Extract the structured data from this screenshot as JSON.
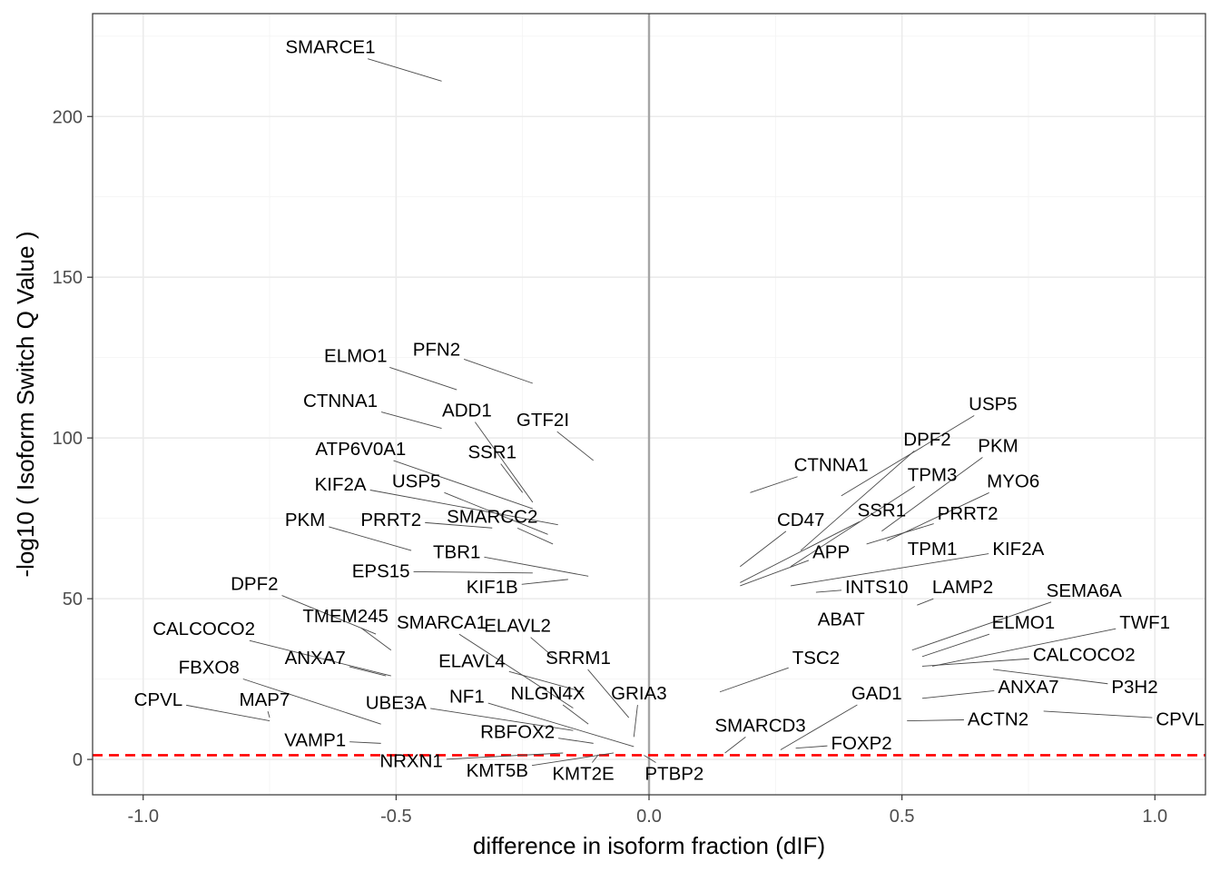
{
  "chart_data": {
    "type": "scatter",
    "title": "",
    "xlabel": "difference in isoform fraction (dIF)",
    "ylabel": "-log10 ( Isoform Switch Q Value )",
    "xlim": [
      -1.1,
      1.1
    ],
    "ylim": [
      -11,
      232
    ],
    "x_ticks": [
      -1.0,
      -0.5,
      0.0,
      0.5,
      1.0
    ],
    "x_tick_labels": [
      "-1.0",
      "-0.5",
      "0.0",
      "0.5",
      "1.0"
    ],
    "y_ticks": [
      0,
      50,
      100,
      150,
      200
    ],
    "y_tick_labels": [
      "0",
      "50",
      "100",
      "150",
      "200"
    ],
    "grid": true,
    "legend": "none",
    "reference_lines": [
      {
        "orientation": "vertical",
        "value": 0,
        "color": "#a6a6a6",
        "style": "solid"
      },
      {
        "orientation": "horizontal",
        "value": 1.3,
        "color": "#ff0000",
        "style": "dashed"
      }
    ],
    "points": [
      {
        "label": "SMARCE1",
        "x": -0.41,
        "y": 211,
        "label_x": -0.63,
        "label_y": 221.5
      },
      {
        "label": "PFN2",
        "x": -0.23,
        "y": 117,
        "label_x": -0.42,
        "label_y": 127.5
      },
      {
        "label": "ELMO1",
        "x": -0.38,
        "y": 115,
        "label_x": -0.58,
        "label_y": 125.5
      },
      {
        "label": "CTNNA1",
        "x": -0.41,
        "y": 103,
        "label_x": -0.61,
        "label_y": 111.5
      },
      {
        "label": "ADD1",
        "x": -0.23,
        "y": 80,
        "label_x": -0.36,
        "label_y": 108.5
      },
      {
        "label": "GTF2I",
        "x": -0.11,
        "y": 93,
        "label_x": -0.21,
        "label_y": 105.5
      },
      {
        "label": "ATP6V0A1",
        "x": -0.23,
        "y": 78,
        "label_x": -0.57,
        "label_y": 96.5
      },
      {
        "label": "SSR1",
        "x": -0.25,
        "y": 83,
        "label_x": -0.31,
        "label_y": 95.5
      },
      {
        "label": "KIF2A",
        "x": -0.18,
        "y": 73,
        "label_x": -0.61,
        "label_y": 85.5
      },
      {
        "label": "USP5",
        "x": -0.2,
        "y": 70,
        "label_x": -0.46,
        "label_y": 86.5
      },
      {
        "label": "PKM",
        "x": -0.47,
        "y": 65,
        "label_x": -0.68,
        "label_y": 74.5
      },
      {
        "label": "PRRT2",
        "x": -0.31,
        "y": 72,
        "label_x": -0.51,
        "label_y": 74.5
      },
      {
        "label": "SMARCC2",
        "x": -0.19,
        "y": 67,
        "label_x": -0.31,
        "label_y": 75.5
      },
      {
        "label": "TBR1",
        "x": -0.12,
        "y": 57,
        "label_x": -0.38,
        "label_y": 64.5
      },
      {
        "label": "EPS15",
        "x": -0.23,
        "y": 58,
        "label_x": -0.53,
        "label_y": 58.5
      },
      {
        "label": "KIF1B",
        "x": -0.16,
        "y": 56,
        "label_x": -0.31,
        "label_y": 53.5
      },
      {
        "label": "DPF2",
        "x": -0.54,
        "y": 39,
        "label_x": -0.78,
        "label_y": 54.5
      },
      {
        "label": "TMEM245",
        "x": -0.51,
        "y": 34,
        "label_x": -0.6,
        "label_y": 44.5
      },
      {
        "label": "CALCOCO2",
        "x": -0.51,
        "y": 26,
        "label_x": -0.88,
        "label_y": 40.5
      },
      {
        "label": "SMARCA1",
        "x": -0.15,
        "y": 16,
        "label_x": -0.41,
        "label_y": 42.5
      },
      {
        "label": "ELAVL2",
        "x": -0.19,
        "y": 32,
        "label_x": -0.26,
        "label_y": 41.5
      },
      {
        "label": "ANXA7",
        "x": -0.52,
        "y": 26,
        "label_x": -0.66,
        "label_y": 31.5
      },
      {
        "label": "ELAVL4",
        "x": -0.13,
        "y": 21,
        "label_x": -0.35,
        "label_y": 30.5
      },
      {
        "label": "SRRM1",
        "x": -0.04,
        "y": 13,
        "label_x": -0.14,
        "label_y": 31.5
      },
      {
        "label": "FBXO8",
        "x": -0.53,
        "y": 11,
        "label_x": -0.87,
        "label_y": 28.5
      },
      {
        "label": "NLGN4X",
        "x": -0.12,
        "y": 11,
        "label_x": -0.2,
        "label_y": 20.5
      },
      {
        "label": "GRIA3",
        "x": -0.03,
        "y": 7,
        "label_x": -0.02,
        "label_y": 20.5
      },
      {
        "label": "NF1",
        "x": -0.03,
        "y": 4,
        "label_x": -0.36,
        "label_y": 19.5
      },
      {
        "label": "CPVL",
        "x": -0.75,
        "y": 12,
        "label_x": -0.97,
        "label_y": 18.5
      },
      {
        "label": "MAP7",
        "x": -0.75,
        "y": 13,
        "label_x": -0.76,
        "label_y": 18.5
      },
      {
        "label": "UBE3A",
        "x": -0.15,
        "y": 9,
        "label_x": -0.5,
        "label_y": 17.5
      },
      {
        "label": "RBFOX2",
        "x": -0.11,
        "y": 5,
        "label_x": -0.26,
        "label_y": 8.5
      },
      {
        "label": "VAMP1",
        "x": -0.53,
        "y": 5,
        "label_x": -0.66,
        "label_y": 6.0
      },
      {
        "label": "NRXN1",
        "x": -0.17,
        "y": 2,
        "label_x": -0.47,
        "label_y": -0.5
      },
      {
        "label": "KMT5B",
        "x": -0.07,
        "y": 2,
        "label_x": -0.3,
        "label_y": -3.5
      },
      {
        "label": "KMT2E",
        "x": -0.1,
        "y": 1.5,
        "label_x": -0.13,
        "label_y": -4.5
      },
      {
        "label": "PTBP2",
        "x": -0.01,
        "y": 1.3,
        "label_x": 0.05,
        "label_y": -4.5
      },
      {
        "label": "USP5",
        "x": 0.38,
        "y": 82,
        "label_x": 0.68,
        "label_y": 110.5
      },
      {
        "label": "CTNNA1",
        "x": 0.2,
        "y": 83,
        "label_x": 0.36,
        "label_y": 91.5
      },
      {
        "label": "DPF2",
        "x": 0.3,
        "y": 65,
        "label_x": 0.55,
        "label_y": 99.5
      },
      {
        "label": "PKM",
        "x": 0.46,
        "y": 71,
        "label_x": 0.69,
        "label_y": 97.5
      },
      {
        "label": "TPM3",
        "x": 0.28,
        "y": 60,
        "label_x": 0.56,
        "label_y": 88.5
      },
      {
        "label": "MYO6",
        "x": 0.47,
        "y": 68,
        "label_x": 0.72,
        "label_y": 86.5
      },
      {
        "label": "CD47",
        "x": 0.18,
        "y": 60,
        "label_x": 0.3,
        "label_y": 74.5
      },
      {
        "label": "SSR1",
        "x": 0.18,
        "y": 55,
        "label_x": 0.46,
        "label_y": 77.5
      },
      {
        "label": "PRRT2",
        "x": 0.43,
        "y": 67,
        "label_x": 0.63,
        "label_y": 76.5
      },
      {
        "label": "APP",
        "x": 0.18,
        "y": 54,
        "label_x": 0.36,
        "label_y": 64.5
      },
      {
        "label": "TPM1",
        "x": 0.56,
        "y": 66,
        "label_x": 0.56,
        "label_y": 65.5
      },
      {
        "label": "KIF2A",
        "x": 0.28,
        "y": 54,
        "label_x": 0.73,
        "label_y": 65.5
      },
      {
        "label": "INTS10",
        "x": 0.33,
        "y": 52,
        "label_x": 0.45,
        "label_y": 53.5
      },
      {
        "label": "LAMP2",
        "x": 0.53,
        "y": 48,
        "label_x": 0.62,
        "label_y": 53.5
      },
      {
        "label": "SEMA6A",
        "x": 0.52,
        "y": 34,
        "label_x": 0.86,
        "label_y": 52.5
      },
      {
        "label": "ABAT",
        "x": 0.38,
        "y": 43,
        "label_x": 0.38,
        "label_y": 43.5
      },
      {
        "label": "ELMO1",
        "x": 0.54,
        "y": 32,
        "label_x": 0.74,
        "label_y": 42.5
      },
      {
        "label": "TWF1",
        "x": 0.56,
        "y": 29,
        "label_x": 0.98,
        "label_y": 42.5
      },
      {
        "label": "CALCOCO2",
        "x": 0.54,
        "y": 29,
        "label_x": 0.86,
        "label_y": 32.5
      },
      {
        "label": "TSC2",
        "x": 0.14,
        "y": 21,
        "label_x": 0.33,
        "label_y": 31.5
      },
      {
        "label": "P3H2",
        "x": 0.68,
        "y": 28,
        "label_x": 0.96,
        "label_y": 22.5
      },
      {
        "label": "ANXA7",
        "x": 0.54,
        "y": 19,
        "label_x": 0.75,
        "label_y": 22.5
      },
      {
        "label": "GAD1",
        "x": 0.26,
        "y": 3,
        "label_x": 0.45,
        "label_y": 20.5
      },
      {
        "label": "ACTN2",
        "x": 0.51,
        "y": 12,
        "label_x": 0.69,
        "label_y": 12.5
      },
      {
        "label": "CPVL",
        "x": 0.78,
        "y": 15,
        "label_x": 1.05,
        "label_y": 12.5
      },
      {
        "label": "SMARCD3",
        "x": 0.15,
        "y": 2,
        "label_x": 0.22,
        "label_y": 10.5
      },
      {
        "label": "FOXP2",
        "x": 0.29,
        "y": 3.5,
        "label_x": 0.42,
        "label_y": 5.0
      }
    ]
  }
}
